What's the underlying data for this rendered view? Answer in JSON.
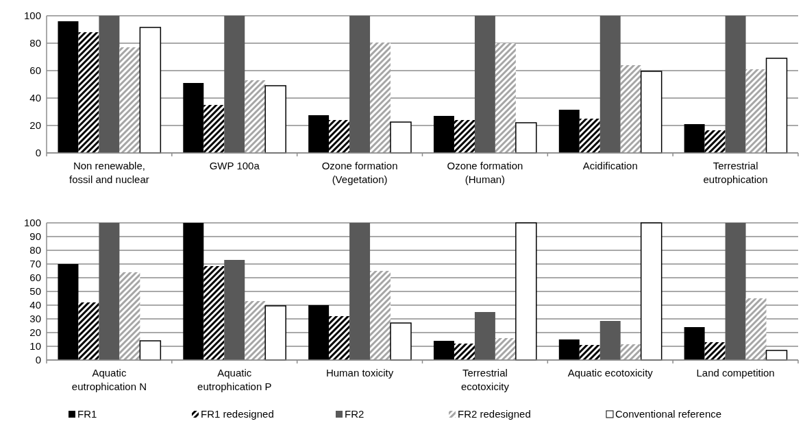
{
  "chart_data": [
    {
      "type": "bar",
      "categories": [
        "Non renewable,\nfossil and nuclear",
        "GWP 100a",
        "Ozone formation\n(Vegetation)",
        "Ozone formation\n(Human)",
        "Acidification",
        "Terrestrial\neutrophication"
      ],
      "ylim": [
        0,
        100
      ],
      "yticks": [
        0,
        20,
        40,
        60,
        80,
        100
      ],
      "grid": "y",
      "legend": false,
      "series": [
        {
          "color": "#000000",
          "values": [
            96,
            51,
            27.5,
            27,
            31.5,
            21
          ]
        },
        {
          "color": "#000000",
          "values": [
            88,
            35,
            24,
            24,
            25,
            16.5
          ]
        },
        {
          "color": "#595959",
          "values": [
            100,
            100,
            100,
            100,
            100,
            100
          ]
        },
        {
          "color": "#a6a6a6",
          "values": [
            77,
            53,
            80.5,
            80,
            64,
            61
          ]
        },
        {
          "color": "#ffffff",
          "values": [
            91.5,
            49,
            22.5,
            22,
            59.5,
            69
          ]
        }
      ]
    },
    {
      "type": "bar",
      "categories": [
        "Aquatic\neutrophication N",
        "Aquatic\neutrophication P",
        "Human toxicity",
        "Terrestrial\necotoxicity",
        "Aquatic ecotoxicity",
        "Land competition"
      ],
      "ylim": [
        0,
        100
      ],
      "yticks": [
        0,
        10,
        20,
        30,
        40,
        50,
        60,
        70,
        80,
        90,
        100
      ],
      "grid": "y",
      "legend": "bottom",
      "series": [
        {
          "name": "FR1",
          "color": "#000000",
          "values": [
            70,
            100,
            40,
            14,
            15,
            24
          ]
        },
        {
          "name": "FR1 redesigned",
          "color": "#000000",
          "values": [
            42,
            68.5,
            32,
            12,
            11,
            13
          ]
        },
        {
          "name": "FR2",
          "color": "#595959",
          "values": [
            100,
            73,
            100,
            35,
            28.5,
            100
          ]
        },
        {
          "name": "FR2 redesigned",
          "color": "#a6a6a6",
          "values": [
            64,
            43,
            65,
            16,
            11.5,
            45
          ]
        },
        {
          "name": "Conventional reference",
          "color": "#ffffff",
          "values": [
            14,
            39.5,
            27,
            100,
            100,
            7
          ]
        }
      ]
    }
  ]
}
